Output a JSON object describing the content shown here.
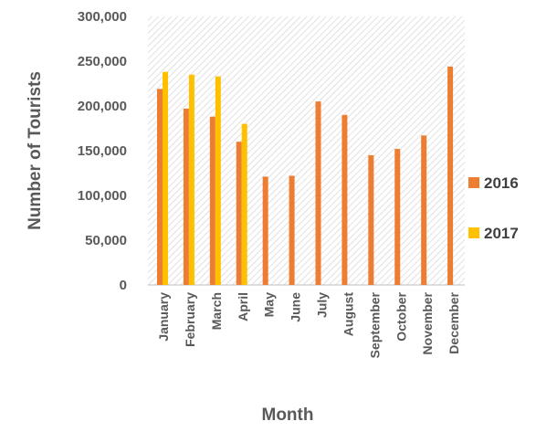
{
  "chart_data": {
    "type": "bar",
    "title": "",
    "xlabel": "Month",
    "ylabel": "Number of Tourists",
    "ylim": [
      0,
      300000
    ],
    "yticks": [
      0,
      50000,
      100000,
      150000,
      200000,
      250000,
      300000
    ],
    "ytick_labels": [
      "0",
      "50,000",
      "100,000",
      "150,000",
      "200,000",
      "250,000",
      "300,000"
    ],
    "categories": [
      "January",
      "February",
      "March",
      "April",
      "May",
      "June",
      "July",
      "August",
      "September",
      "October",
      "November",
      "December"
    ],
    "series": [
      {
        "name": "2016",
        "color": "#ED7D31",
        "values": [
          219000,
          197000,
          188000,
          160000,
          121000,
          122000,
          205000,
          190000,
          145000,
          152000,
          167000,
          244000
        ]
      },
      {
        "name": "2017",
        "color": "#FFC000",
        "values": [
          238000,
          235000,
          233000,
          180000,
          null,
          null,
          null,
          null,
          null,
          null,
          null,
          null
        ]
      }
    ],
    "grid": false,
    "legend_position": "right"
  }
}
